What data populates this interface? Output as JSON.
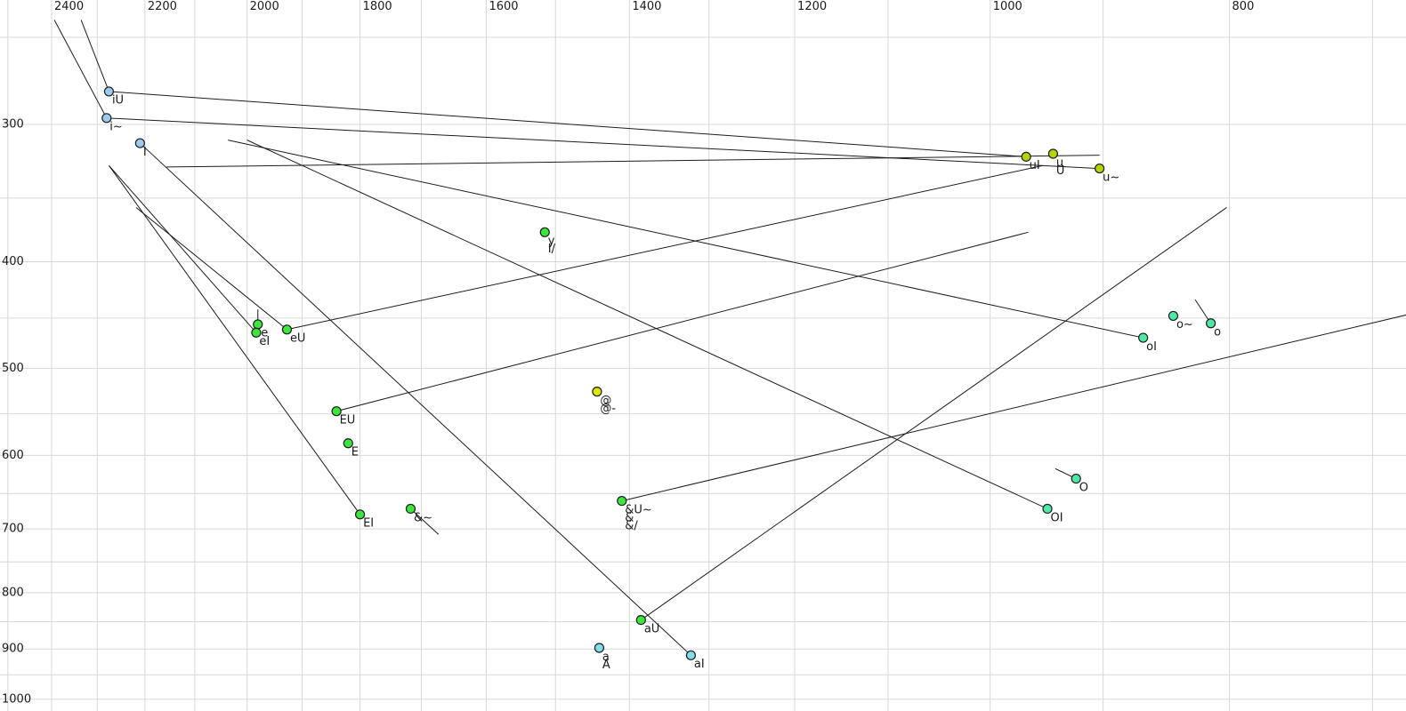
{
  "chart_data": {
    "type": "scatter",
    "title": "",
    "description": "Vowel formant space: F2 (Hz) on reversed log x-axis (top ticks), F1 (Hz) on log y-axis increasing downward (left ticks). Points are vowel tokens; lines are formant trajectories of diphthongs and vowel-inherent spectral change.",
    "x_axis": {
      "unit": "Hz",
      "scale": "log",
      "reversed": true,
      "label_ticks": [
        2400,
        2200,
        2000,
        1800,
        1600,
        1400,
        1200,
        1000,
        800
      ],
      "grid_min": 700,
      "grid_max": 2500,
      "grid_step": 100,
      "range_visible": [
        2519,
        678
      ]
    },
    "y_axis": {
      "unit": "Hz",
      "scale": "log",
      "increases_downward": true,
      "label_ticks": [
        300,
        400,
        500,
        600,
        700,
        800,
        900,
        1000
      ],
      "grid_min": 250,
      "grid_max": 1000,
      "grid_step": 50,
      "range_visible": [
        227,
        1013
      ]
    },
    "legend": "none",
    "grid": true,
    "colors": {
      "blue": "#9DC9F0",
      "cyan": "#82DCEC",
      "green": "#3CE63C",
      "yellowgreen": "#B2D600",
      "yellow": "#DCE800",
      "seafoam": "#4FE8A4",
      "point_stroke": "#1c1c1c",
      "line": "#1c1c1c",
      "grid": "#d8d8d8",
      "text": "#1a1a1a"
    },
    "points": [
      {
        "labels": [
          "iU"
        ],
        "f2": 2275,
        "f1": 280,
        "color": "blue"
      },
      {
        "labels": [
          "i~"
        ],
        "f2": 2280,
        "f1": 296,
        "color": "blue"
      },
      {
        "labels": [
          "I"
        ],
        "f2": 2210,
        "f1": 312,
        "color": "blue"
      },
      {
        "labels": [
          "y",
          "I/"
        ],
        "f2": 1515,
        "f1": 376,
        "color": "green"
      },
      {
        "labels": [
          "e"
        ],
        "f2": 1980,
        "f1": 456,
        "color": "green"
      },
      {
        "labels": [
          "eI"
        ],
        "f2": 1983,
        "f1": 464,
        "color": "green"
      },
      {
        "labels": [
          "eU"
        ],
        "f2": 1927,
        "f1": 461,
        "color": "green"
      },
      {
        "labels": [
          "EU"
        ],
        "f2": 1840,
        "f1": 547,
        "color": "green"
      },
      {
        "labels": [
          "E"
        ],
        "f2": 1820,
        "f1": 585,
        "color": "green"
      },
      {
        "labels": [
          "EI"
        ],
        "f2": 1800,
        "f1": 679,
        "color": "green"
      },
      {
        "labels": [
          "&~"
        ],
        "f2": 1717,
        "f1": 671,
        "color": "green"
      },
      {
        "labels": [
          "@",
          "@-"
        ],
        "f2": 1443,
        "f1": 525,
        "color": "yellow"
      },
      {
        "labels": [
          "&U~",
          "&",
          "&/"
        ],
        "f2": 1410,
        "f1": 660,
        "color": "green"
      },
      {
        "labels": [
          "aU"
        ],
        "f2": 1385,
        "f1": 847,
        "color": "green"
      },
      {
        "labels": [
          "a",
          "A"
        ],
        "f2": 1440,
        "f1": 898,
        "color": "cyan"
      },
      {
        "labels": [
          "aI"
        ],
        "f2": 1322,
        "f1": 912,
        "color": "cyan"
      },
      {
        "labels": [
          "uI"
        ],
        "f2": 967,
        "f1": 321,
        "color": "yellowgreen"
      },
      {
        "labels": [
          "u",
          "U"
        ],
        "f2": 943,
        "f1": 319,
        "color": "yellowgreen"
      },
      {
        "labels": [
          "u~"
        ],
        "f2": 903,
        "f1": 329,
        "color": "yellowgreen"
      },
      {
        "labels": [
          "o~"
        ],
        "f2": 843,
        "f1": 448,
        "color": "seafoam"
      },
      {
        "labels": [
          "o"
        ],
        "f2": 814,
        "f1": 455,
        "color": "seafoam"
      },
      {
        "labels": [
          "oI"
        ],
        "f2": 867,
        "f1": 469,
        "color": "seafoam"
      },
      {
        "labels": [
          "O"
        ],
        "f2": 923,
        "f1": 630,
        "color": "seafoam"
      },
      {
        "labels": [
          "OI"
        ],
        "f2": 948,
        "f1": 671,
        "color": "seafoam"
      }
    ],
    "segments": [
      {
        "name": "onset-to-i~",
        "f2a": 2394,
        "f1a": 241,
        "f2b": 2280,
        "f1b": 296
      },
      {
        "name": "onset-to-iU",
        "f2a": 2335,
        "f1a": 241,
        "f2b": 2275,
        "f1b": 280
      },
      {
        "name": "uI-glide",
        "f2a": 967,
        "f1a": 321,
        "f2b": 2275,
        "f1b": 280
      },
      {
        "name": "u-trajectory",
        "f2a": 2156,
        "f1a": 328,
        "f2b": 903,
        "f1b": 320
      },
      {
        "name": "i~-to-u~",
        "f2a": 2280,
        "f1a": 296,
        "f2b": 903,
        "f1b": 329
      },
      {
        "name": "onset-to-eI",
        "f2a": 2275,
        "f1a": 327,
        "f2b": 1983,
        "f1b": 464
      },
      {
        "name": "onset-to-EI",
        "f2a": 2275,
        "f1a": 327,
        "f2b": 1800,
        "f1b": 679
      },
      {
        "name": "onset-to-eU",
        "f2a": 2218,
        "f1a": 357,
        "f2b": 1927,
        "f1b": 461
      },
      {
        "name": "e-trajectory",
        "f2a": 1980,
        "f1a": 442,
        "f2b": 1980,
        "f1b": 456
      },
      {
        "name": "&~-trajectory",
        "f2a": 1717,
        "f1a": 671,
        "f2b": 1673,
        "f1b": 708
      },
      {
        "name": "eU-glide",
        "f2a": 1927,
        "f1a": 461,
        "f2b": 952,
        "f1b": 327
      },
      {
        "name": "EU-glide",
        "f2a": 1840,
        "f1a": 547,
        "f2b": 965,
        "f1b": 376
      },
      {
        "name": "OI-glide",
        "f2a": 2000,
        "f1a": 310,
        "f2b": 948,
        "f1b": 671
      },
      {
        "name": "oI-glide",
        "f2a": 2036,
        "f1a": 310,
        "f2b": 867,
        "f1b": 469
      },
      {
        "name": "aI-glide",
        "f2a": 2210,
        "f1a": 312,
        "f2b": 1322,
        "f1b": 912
      },
      {
        "name": "aU-glide",
        "f2a": 1385,
        "f1a": 847,
        "f2b": 802,
        "f1b": 357
      },
      {
        "name": "&U~-glide",
        "f2a": 1410,
        "f1a": 660,
        "f2b": 678,
        "f1b": 447
      },
      {
        "name": "o-trajectory",
        "f2a": 826,
        "f1a": 433,
        "f2b": 814,
        "f1b": 455
      },
      {
        "name": "O-trajectory",
        "f2a": 941,
        "f1a": 617,
        "f2b": 923,
        "f1b": 630
      }
    ]
  }
}
